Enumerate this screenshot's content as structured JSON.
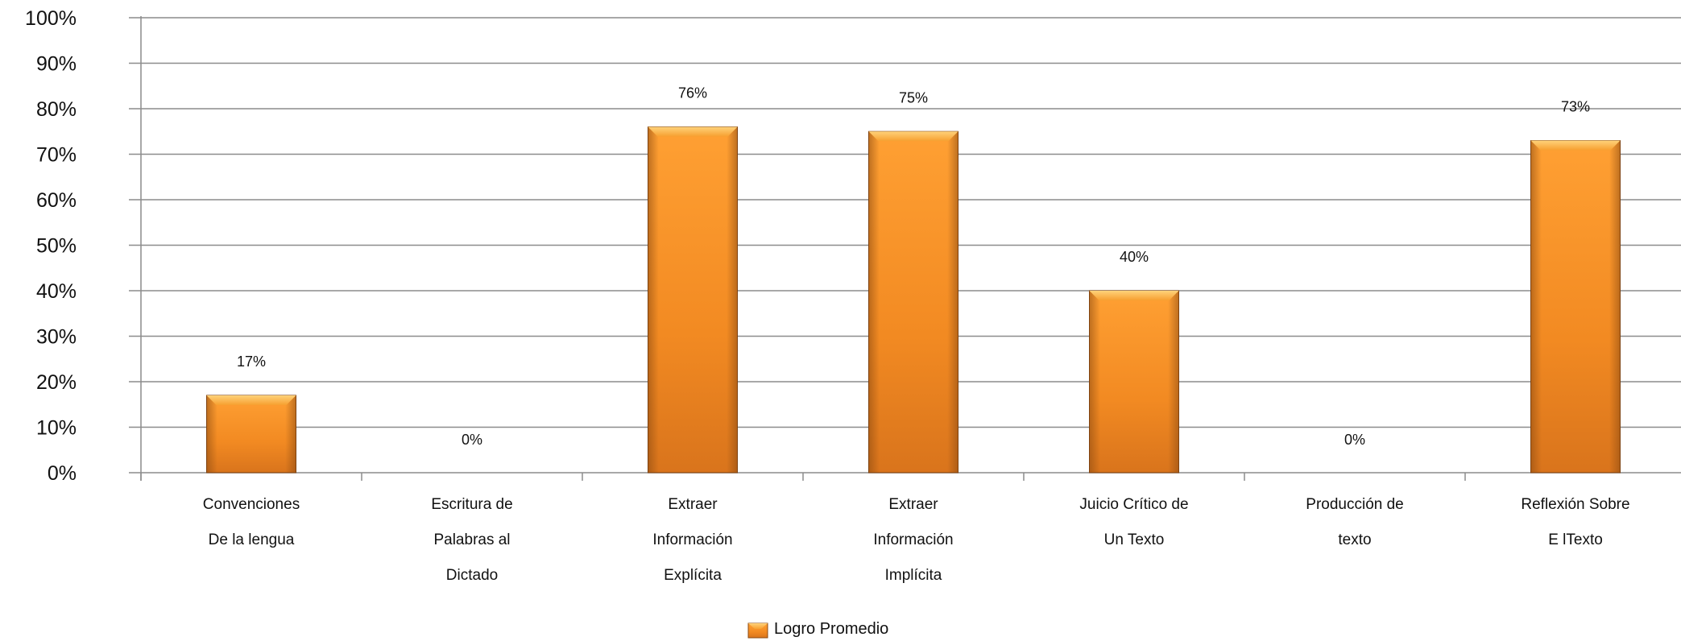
{
  "chart_data": {
    "type": "bar",
    "categories": [
      [
        "Convenciones",
        "De la lengua"
      ],
      [
        "Escritura de",
        "Palabras al",
        "Dictado"
      ],
      [
        "Extraer",
        "Información",
        "Explícita"
      ],
      [
        "Extraer",
        "Información",
        "Implícita"
      ],
      [
        "Juicio  Crítico de",
        "Un Texto"
      ],
      [
        "Producción de",
        "texto"
      ],
      [
        "Reflexión Sobre",
        "E lTexto"
      ]
    ],
    "series": [
      {
        "name": "Logro Promedio",
        "values": [
          17,
          0,
          76,
          75,
          40,
          0,
          73
        ]
      }
    ],
    "data_labels": [
      "17%",
      "0%",
      "76%",
      "75%",
      "40%",
      "0%",
      "73%"
    ],
    "yticks": [
      "0%",
      "10%",
      "20%",
      "30%",
      "40%",
      "50%",
      "60%",
      "70%",
      "80%",
      "90%",
      "100%"
    ],
    "ylim": [
      0,
      100
    ],
    "grid": true,
    "legend_position": "bottom",
    "colors": {
      "bar": "#F7941D",
      "bar_dark": "#C0641A",
      "grid": "#8c8c8c"
    }
  }
}
